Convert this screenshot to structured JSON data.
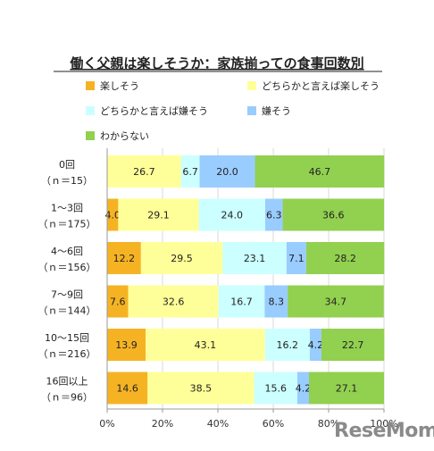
{
  "chart_data": {
    "type": "bar",
    "orientation": "horizontal",
    "stacked": true,
    "title": "働く父親は楽しそうか：家族揃っての食事回数別",
    "categories": [
      {
        "label": "0回",
        "n": "（ｎ＝15）"
      },
      {
        "label": "1～3回",
        "n": "（ｎ＝175）"
      },
      {
        "label": "4～6回",
        "n": "（ｎ＝156）"
      },
      {
        "label": "7～9回",
        "n": "（ｎ＝144）"
      },
      {
        "label": "10～15回",
        "n": "（ｎ＝216）"
      },
      {
        "label": "16回以上",
        "n": "（ｎ＝96）"
      }
    ],
    "series": [
      {
        "name": "楽しそう",
        "color": "#F5B324",
        "values": [
          0,
          4.0,
          12.2,
          7.6,
          13.9,
          14.6
        ]
      },
      {
        "name": "どちらかと言えば楽しそう",
        "color": "#FFFF99",
        "values": [
          26.7,
          29.1,
          29.5,
          32.6,
          43.1,
          38.5
        ]
      },
      {
        "name": "どちらかと言えば嫌そう",
        "color": "#CCFFFF",
        "values": [
          6.7,
          24.0,
          23.1,
          16.7,
          16.2,
          15.6
        ]
      },
      {
        "name": "嫌そう",
        "color": "#99CCFF",
        "values": [
          20.0,
          6.3,
          7.1,
          8.3,
          4.2,
          4.2
        ]
      },
      {
        "name": "わからない",
        "color": "#92D050",
        "values": [
          46.7,
          36.6,
          28.2,
          34.7,
          22.7,
          27.1
        ]
      }
    ],
    "xlim": [
      0,
      100
    ],
    "xticks": [
      "0%",
      "20%",
      "40%",
      "60%",
      "80%",
      "100%"
    ],
    "legend_position": "top"
  },
  "watermark": "ReseMom"
}
